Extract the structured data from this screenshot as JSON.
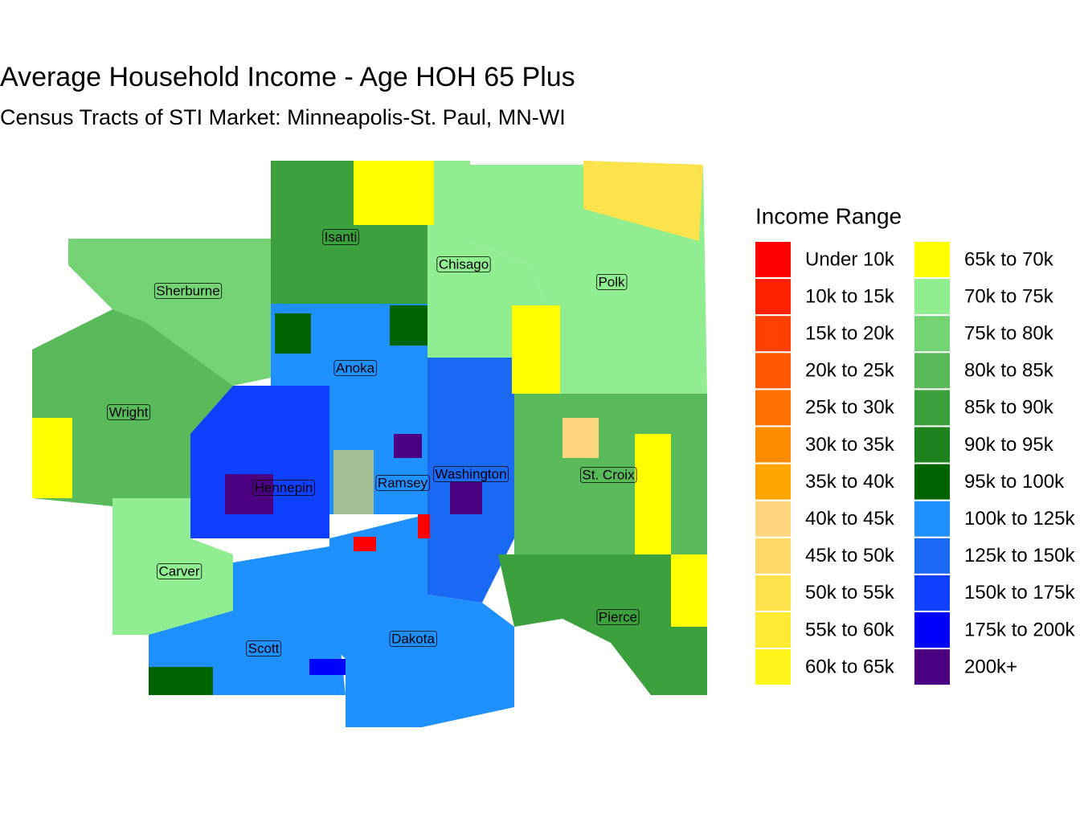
{
  "title": "Average Household Income - Age HOH 65 Plus",
  "subtitle": "Census Tracts of STI Market: Minneapolis-St. Paul, MN-WI",
  "legend": {
    "title": "Income Range",
    "items": [
      {
        "label": "Under 10k",
        "color": "#ff0000"
      },
      {
        "label": "10k to 15k",
        "color": "#ff2000"
      },
      {
        "label": "15k to 20k",
        "color": "#ff4000"
      },
      {
        "label": "20k to 25k",
        "color": "#ff5800"
      },
      {
        "label": "25k to 30k",
        "color": "#ff7000"
      },
      {
        "label": "30k to 35k",
        "color": "#ff8c00"
      },
      {
        "label": "35k to 40k",
        "color": "#ffa500"
      },
      {
        "label": "40k to 45k",
        "color": "#ffd580"
      },
      {
        "label": "45k to 50k",
        "color": "#ffda66"
      },
      {
        "label": "50k to 55k",
        "color": "#ffe34c"
      },
      {
        "label": "55k to 60k",
        "color": "#ffeb33"
      },
      {
        "label": "60k to 65k",
        "color": "#fff51a"
      },
      {
        "label": "65k to 70k",
        "color": "#ffff00"
      },
      {
        "label": "70k to 75k",
        "color": "#90ee90"
      },
      {
        "label": "75k to 80k",
        "color": "#74d474"
      },
      {
        "label": "80k to 85k",
        "color": "#58ba58"
      },
      {
        "label": "85k to 90k",
        "color": "#3ca03c"
      },
      {
        "label": "90k to 95k",
        "color": "#1e821e"
      },
      {
        "label": "95k to 100k",
        "color": "#006400"
      },
      {
        "label": "100k to 125k",
        "color": "#1e90ff"
      },
      {
        "label": "125k to 150k",
        "color": "#1a6af5"
      },
      {
        "label": "150k to 175k",
        "color": "#0f3fff"
      },
      {
        "label": "175k to 200k",
        "color": "#0000ff"
      },
      {
        "label": "200k+",
        "color": "#4b0082"
      }
    ]
  },
  "counties": [
    "Isanti",
    "Chisago",
    "Polk",
    "Sherburne",
    "Anoka",
    "Wright",
    "Hennepin",
    "Ramsey",
    "Washington",
    "St. Croix",
    "Carver",
    "Scott",
    "Dakota",
    "Pierce"
  ]
}
